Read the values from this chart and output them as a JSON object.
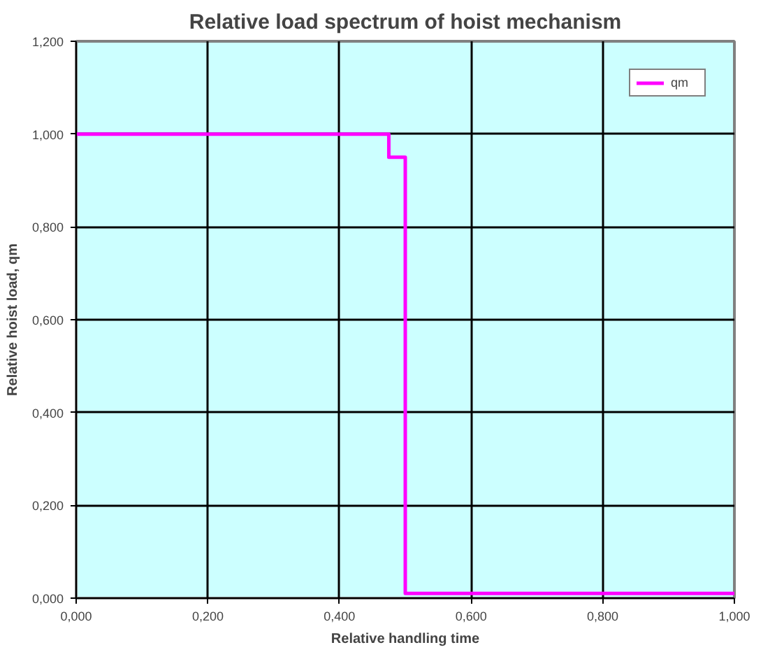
{
  "chart_data": {
    "type": "line",
    "title": "Relative load spectrum of hoist mechanism",
    "xlabel": "Relative handling time",
    "ylabel": "Relative hoist load, qm",
    "series": [
      {
        "name": "qm",
        "color": "#ff00ff",
        "x": [
          0,
          0.475,
          0.475,
          0.5,
          0.5,
          1.0
        ],
        "values": [
          1.0,
          1.0,
          0.95,
          0.95,
          0.01,
          0.01
        ]
      }
    ],
    "xlim": [
      0,
      1
    ],
    "ylim": [
      0,
      1.2
    ],
    "xticks": [
      {
        "value": 0,
        "label": "0,000"
      },
      {
        "value": 0.2,
        "label": "0,200"
      },
      {
        "value": 0.4,
        "label": "0,400"
      },
      {
        "value": 0.6,
        "label": "0,600"
      },
      {
        "value": 0.8,
        "label": "0,800"
      },
      {
        "value": 1.0,
        "label": "1,000"
      }
    ],
    "yticks": [
      {
        "value": 0,
        "label": "0,000"
      },
      {
        "value": 0.2,
        "label": "0,200"
      },
      {
        "value": 0.4,
        "label": "0,400"
      },
      {
        "value": 0.6,
        "label": "0,600"
      },
      {
        "value": 0.8,
        "label": "0,800"
      },
      {
        "value": 1.0,
        "label": "1,000"
      },
      {
        "value": 1.2,
        "label": "1,200"
      }
    ],
    "grid": true,
    "legend": "top right",
    "marker": "none",
    "line_style": "solid"
  }
}
